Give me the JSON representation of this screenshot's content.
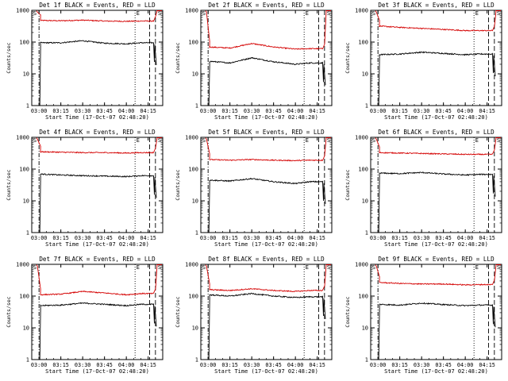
{
  "figure": {
    "start_time_label": "Start Time (17-Oct-07 02:48:20)",
    "y_axis_label": "Counts/sec",
    "marker_labels": {
      "start": "S",
      "end": "E"
    }
  },
  "chart_data": [
    {
      "type": "line",
      "title": "Det 1f BLACK = Events, RED = LLD",
      "ylabel": "Counts/sec",
      "xlabel": "Start Time (17-Oct-07 02:48:20)",
      "y_scale": "log",
      "ylim": [
        1,
        1000
      ],
      "x_ticks": [
        "03:00",
        "03:15",
        "03:30",
        "03:45",
        "04:00",
        "04:15"
      ],
      "y_ticks": [
        "1",
        "10",
        "100",
        "1000"
      ],
      "series": [
        {
          "color": "#d40000",
          "x": [
            "03:00",
            "03:15",
            "03:30",
            "03:45",
            "04:00",
            "04:10"
          ],
          "values": [
            480,
            470,
            490,
            460,
            450,
            460
          ]
        },
        {
          "color": "#000000",
          "x": [
            "03:00",
            "03:15",
            "03:30",
            "03:45",
            "04:00",
            "04:10"
          ],
          "values": [
            95,
            95,
            110,
            92,
            88,
            95
          ]
        }
      ]
    },
    {
      "type": "line",
      "title": "Det 2f BLACK = Events, RED = LLD",
      "ylabel": "Counts/sec",
      "xlabel": "Start Time (17-Oct-07 02:48:20)",
      "y_scale": "log",
      "ylim": [
        1,
        1000
      ],
      "x_ticks": [
        "03:00",
        "03:15",
        "03:30",
        "03:45",
        "04:00",
        "04:15"
      ],
      "y_ticks": [
        "1",
        "10",
        "100",
        "1000"
      ],
      "series": [
        {
          "color": "#d40000",
          "x": [
            "03:00",
            "03:15",
            "03:30",
            "03:45",
            "04:00",
            "04:10"
          ],
          "values": [
            70,
            65,
            90,
            70,
            60,
            62
          ]
        },
        {
          "color": "#000000",
          "x": [
            "03:00",
            "03:15",
            "03:30",
            "03:45",
            "04:00",
            "04:10"
          ],
          "values": [
            25,
            22,
            32,
            24,
            20,
            22
          ]
        }
      ]
    },
    {
      "type": "line",
      "title": "Det 3f BLACK = Events, RED = LLD",
      "ylabel": "Counts/sec",
      "xlabel": "Start Time (17-Oct-07 02:48:20)",
      "y_scale": "log",
      "ylim": [
        1,
        1000
      ],
      "x_ticks": [
        "03:00",
        "03:15",
        "03:30",
        "03:45",
        "04:00",
        "04:15"
      ],
      "y_ticks": [
        "1",
        "10",
        "100",
        "1000"
      ],
      "series": [
        {
          "color": "#d40000",
          "x": [
            "03:00",
            "03:15",
            "03:30",
            "03:45",
            "04:00",
            "04:10"
          ],
          "values": [
            320,
            290,
            270,
            250,
            230,
            230
          ]
        },
        {
          "color": "#000000",
          "x": [
            "03:00",
            "03:15",
            "03:30",
            "03:45",
            "04:00",
            "04:10"
          ],
          "values": [
            40,
            42,
            48,
            44,
            40,
            42
          ]
        }
      ]
    },
    {
      "type": "line",
      "title": "Det 4f BLACK = Events, RED = LLD",
      "ylabel": "Counts/sec",
      "xlabel": "Start Time (17-Oct-07 02:48:20)",
      "y_scale": "log",
      "ylim": [
        1,
        1000
      ],
      "x_ticks": [
        "03:00",
        "03:15",
        "03:30",
        "03:45",
        "04:00",
        "04:15"
      ],
      "y_ticks": [
        "1",
        "10",
        "100",
        "1000"
      ],
      "series": [
        {
          "color": "#d40000",
          "x": [
            "03:00",
            "03:15",
            "03:30",
            "03:45",
            "04:00",
            "04:10"
          ],
          "values": [
            350,
            340,
            330,
            330,
            320,
            330
          ]
        },
        {
          "color": "#000000",
          "x": [
            "03:00",
            "03:15",
            "03:30",
            "03:45",
            "04:00",
            "04:10"
          ],
          "values": [
            70,
            65,
            62,
            60,
            58,
            62
          ]
        }
      ]
    },
    {
      "type": "line",
      "title": "Det 5f BLACK = Events, RED = LLD",
      "ylabel": "Counts/sec",
      "xlabel": "Start Time (17-Oct-07 02:48:20)",
      "y_scale": "log",
      "ylim": [
        1,
        1000
      ],
      "x_ticks": [
        "03:00",
        "03:15",
        "03:30",
        "03:45",
        "04:00",
        "04:15"
      ],
      "y_ticks": [
        "1",
        "10",
        "100",
        "1000"
      ],
      "series": [
        {
          "color": "#d40000",
          "x": [
            "03:00",
            "03:15",
            "03:30",
            "03:45",
            "04:00",
            "04:10"
          ],
          "values": [
            200,
            190,
            200,
            190,
            185,
            190
          ]
        },
        {
          "color": "#000000",
          "x": [
            "03:00",
            "03:15",
            "03:30",
            "03:45",
            "04:00",
            "04:10"
          ],
          "values": [
            45,
            42,
            50,
            40,
            35,
            40
          ]
        }
      ]
    },
    {
      "type": "line",
      "title": "Det 6f BLACK = Events, RED = LLD",
      "ylabel": "Counts/sec",
      "xlabel": "Start Time (17-Oct-07 02:48:20)",
      "y_scale": "log",
      "ylim": [
        1,
        1000
      ],
      "x_ticks": [
        "03:00",
        "03:15",
        "03:30",
        "03:45",
        "04:00",
        "04:15"
      ],
      "y_ticks": [
        "1",
        "10",
        "100",
        "1000"
      ],
      "series": [
        {
          "color": "#d40000",
          "x": [
            "03:00",
            "03:15",
            "03:30",
            "03:45",
            "04:00",
            "04:10"
          ],
          "values": [
            330,
            320,
            310,
            300,
            290,
            290
          ]
        },
        {
          "color": "#000000",
          "x": [
            "03:00",
            "03:15",
            "03:30",
            "03:45",
            "04:00",
            "04:10"
          ],
          "values": [
            75,
            72,
            78,
            70,
            65,
            68
          ]
        }
      ]
    },
    {
      "type": "line",
      "title": "Det 7f BLACK = Events, RED = LLD",
      "ylabel": "Counts/sec",
      "xlabel": "Start Time (17-Oct-07 02:48:20)",
      "y_scale": "log",
      "ylim": [
        1,
        1000
      ],
      "x_ticks": [
        "03:00",
        "03:15",
        "03:30",
        "03:45",
        "04:00",
        "04:15"
      ],
      "y_ticks": [
        "1",
        "10",
        "100",
        "1000"
      ],
      "series": [
        {
          "color": "#d40000",
          "x": [
            "03:00",
            "03:15",
            "03:30",
            "03:45",
            "04:00",
            "04:10"
          ],
          "values": [
            110,
            115,
            140,
            125,
            110,
            120
          ]
        },
        {
          "color": "#000000",
          "x": [
            "03:00",
            "03:15",
            "03:30",
            "03:45",
            "04:00",
            "04:10"
          ],
          "values": [
            50,
            52,
            60,
            55,
            50,
            55
          ]
        }
      ]
    },
    {
      "type": "line",
      "title": "Det 8f BLACK = Events, RED = LLD",
      "ylabel": "Counts/sec",
      "xlabel": "Start Time (17-Oct-07 02:48:20)",
      "y_scale": "log",
      "ylim": [
        1,
        1000
      ],
      "x_ticks": [
        "03:00",
        "03:15",
        "03:30",
        "03:45",
        "04:00",
        "04:15"
      ],
      "y_ticks": [
        "1",
        "10",
        "100",
        "1000"
      ],
      "series": [
        {
          "color": "#d40000",
          "x": [
            "03:00",
            "03:15",
            "03:30",
            "03:45",
            "04:00",
            "04:10"
          ],
          "values": [
            160,
            150,
            170,
            150,
            140,
            150
          ]
        },
        {
          "color": "#000000",
          "x": [
            "03:00",
            "03:15",
            "03:30",
            "03:45",
            "04:00",
            "04:10"
          ],
          "values": [
            110,
            100,
            120,
            100,
            90,
            95
          ]
        }
      ]
    },
    {
      "type": "line",
      "title": "Det 9f BLACK = Events, RED = LLD",
      "ylabel": "Counts/sec",
      "xlabel": "Start Time (17-Oct-07 02:48:20)",
      "y_scale": "log",
      "ylim": [
        1,
        1000
      ],
      "x_ticks": [
        "03:00",
        "03:15",
        "03:30",
        "03:45",
        "04:00",
        "04:15"
      ],
      "y_ticks": [
        "1",
        "10",
        "100",
        "1000"
      ],
      "series": [
        {
          "color": "#d40000",
          "x": [
            "03:00",
            "03:15",
            "03:30",
            "03:45",
            "04:00",
            "04:10"
          ],
          "values": [
            270,
            250,
            240,
            240,
            225,
            230
          ]
        },
        {
          "color": "#000000",
          "x": [
            "03:00",
            "03:15",
            "03:30",
            "03:45",
            "04:00",
            "04:10"
          ],
          "values": [
            55,
            52,
            60,
            54,
            50,
            52
          ]
        }
      ]
    }
  ]
}
